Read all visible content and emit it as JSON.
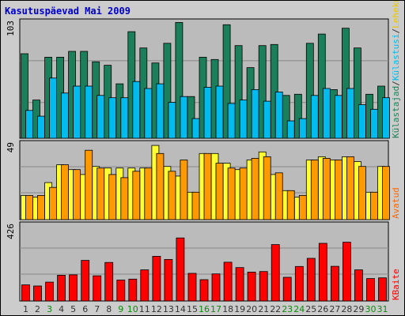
{
  "chart_data": {
    "type": "bar",
    "title": "Kasutuspäevad Mai 2009",
    "categories": [
      "1",
      "2",
      "3",
      "4",
      "5",
      "6",
      "7",
      "8",
      "9",
      "10",
      "11",
      "12",
      "13",
      "14",
      "15",
      "16",
      "17",
      "18",
      "19",
      "20",
      "21",
      "22",
      "23",
      "24",
      "25",
      "26",
      "27",
      "28",
      "29",
      "30",
      "31"
    ],
    "weekend_days": [
      "3",
      "9",
      "10",
      "16",
      "17",
      "23",
      "24",
      "30",
      "31"
    ],
    "panels": [
      {
        "key": "top",
        "ymax_label": "103",
        "ymax": 103,
        "series": [
          {
            "name": "Külastajad",
            "color": "#1a7f5a",
            "values": [
              73,
              33,
              70,
              70,
              75,
              75,
              66,
              63,
              47,
              92,
              78,
              65,
              82,
              100,
              36,
              70,
              68,
              98,
              80,
              61,
              80,
              81,
              37,
              38,
              82,
              90,
              42,
              95,
              78,
              38,
              45
            ]
          },
          {
            "name": "Külastusi",
            "color": "#00bbee",
            "values": [
              24,
              19,
              52,
              39,
              45,
              45,
              37,
              35,
              35,
              49,
              43,
              47,
              31,
              36,
              17,
              44,
              45,
              30,
              33,
              42,
              32,
              40,
              15,
              17,
              37,
              43,
              37,
              43,
              29,
              25,
              35
            ]
          }
        ]
      },
      {
        "key": "mid",
        "ymax_label": "49",
        "ymax": 49,
        "series": [
          {
            "name": "Lehekülgi",
            "color": "#ffff33",
            "values": [
              15,
              14,
              23,
              34,
              31,
              28,
              33,
              32,
              32,
              32,
              32,
              46,
              33,
              27,
              17,
              41,
              41,
              35,
              31,
              37,
              42,
              28,
              18,
              14,
              37,
              39,
              37,
              39,
              36,
              17,
              33
            ]
          },
          {
            "name": "Faile",
            "color": "#ff9900",
            "values": [
              15,
              15,
              20,
              34,
              31,
              43,
              32,
              28,
              26,
              30,
              32,
              41,
              30,
              37,
              17,
              41,
              35,
              32,
              32,
              38,
              39,
              29,
              18,
              15,
              37,
              38,
              37,
              39,
              33,
              17,
              33
            ]
          }
        ]
      },
      {
        "key": "bot",
        "ymax_label": "426",
        "ymax": 426,
        "series": [
          {
            "name": "KBaite",
            "color": "#ff0000",
            "values": [
              87,
              81,
              102,
              139,
              141,
              219,
              136,
              208,
              113,
              118,
              168,
              241,
              224,
              340,
              149,
              115,
              146,
              209,
              180,
              156,
              159,
              304,
              128,
              186,
              230,
              311,
              187,
              317,
              168,
              121,
              125
            ]
          }
        ]
      }
    ],
    "legend_right": [
      {
        "text": "Külastajad",
        "color": "#1a7f5a"
      },
      {
        "text": "/",
        "color": "#333333"
      },
      {
        "text": "Külastusi",
        "color": "#00bbee"
      },
      {
        "text": "/",
        "color": "#333333"
      },
      {
        "text": "Lehekülgi",
        "color": "#e8c800"
      },
      {
        "text": "/",
        "color": "#333333"
      },
      {
        "text": "Faile",
        "color": "#00aaff"
      },
      {
        "text": "/",
        "color": "#333333"
      },
      {
        "text": "Pöördumisi",
        "color": "#1a7f5a"
      }
    ],
    "legend_right_mid": {
      "text": "Avatud",
      "color": "#ff6600"
    },
    "legend_right_bot": {
      "text": "KBaite",
      "color": "#ff0000"
    },
    "colors": {
      "background": "#cccccc",
      "plot_bg": "#bbbbbb",
      "grid": "#888888",
      "title": "#0000cc",
      "weekday_label": "#333333",
      "weekend_label": "#118811"
    }
  }
}
